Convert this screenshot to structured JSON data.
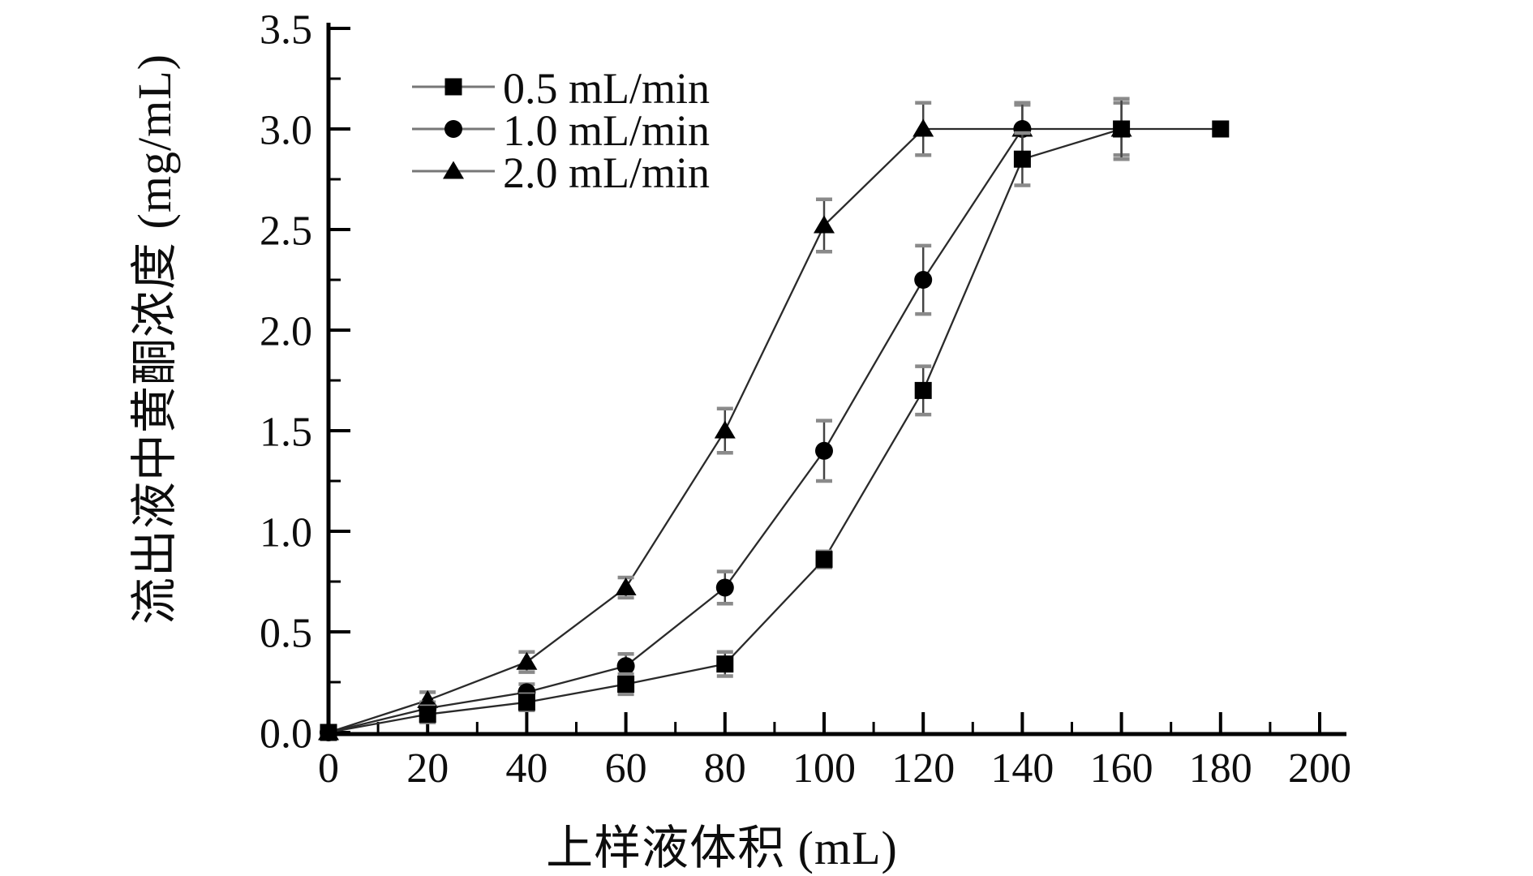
{
  "chart_data": {
    "type": "line",
    "title": "",
    "xlabel": "上样液体积 (mL)",
    "ylabel": "流出液中黄酮浓度 (mg/mL)",
    "xlim": [
      0,
      200
    ],
    "ylim": [
      0,
      3.5
    ],
    "x_major_step": 20,
    "x_minor_step": 10,
    "y_major_step": 0.5,
    "y_minor_step": 0.25,
    "x_tick_labels": [
      "0",
      "20",
      "40",
      "60",
      "80",
      "100",
      "120",
      "140",
      "160",
      "180",
      "200"
    ],
    "y_tick_labels": [
      "0.0",
      "0.5",
      "1.0",
      "1.5",
      "2.0",
      "2.5",
      "3.0",
      "3.5"
    ],
    "grid": false,
    "legend": {
      "position": "top-left-inside"
    },
    "colors": {
      "axis": "#000000",
      "line": "#2a2a2a",
      "marker": "#000000",
      "error_bar_line": "#444444",
      "error_bar_cap": "#8a8a8a",
      "legend_line": "#777777"
    },
    "series": [
      {
        "name": "0.5 mL/min",
        "marker": "square",
        "x": [
          0,
          20,
          40,
          60,
          80,
          100,
          120,
          140,
          160,
          180
        ],
        "y": [
          0,
          0.09,
          0.15,
          0.24,
          0.34,
          0.86,
          1.7,
          2.85,
          3.0,
          3.0
        ],
        "yerr": [
          0,
          0.04,
          0.04,
          0.05,
          0.06,
          0.04,
          0.12,
          0.13,
          0.15,
          0
        ]
      },
      {
        "name": "1.0 mL/min",
        "marker": "circle",
        "x": [
          0,
          20,
          40,
          60,
          80,
          100,
          120,
          140
        ],
        "y": [
          0,
          0.12,
          0.2,
          0.33,
          0.72,
          1.4,
          2.25,
          3.0
        ],
        "yerr": [
          0,
          0.03,
          0.04,
          0.06,
          0.08,
          0.15,
          0.17,
          0.13
        ]
      },
      {
        "name": "2.0 mL/min",
        "marker": "triangle",
        "x": [
          0,
          20,
          40,
          60,
          80,
          100,
          120,
          140,
          160
        ],
        "y": [
          0,
          0.16,
          0.35,
          0.72,
          1.5,
          2.52,
          3.0,
          3.0,
          3.0
        ],
        "yerr": [
          0,
          0.04,
          0.05,
          0.05,
          0.11,
          0.13,
          0.13,
          0.12,
          0.13
        ]
      }
    ]
  }
}
